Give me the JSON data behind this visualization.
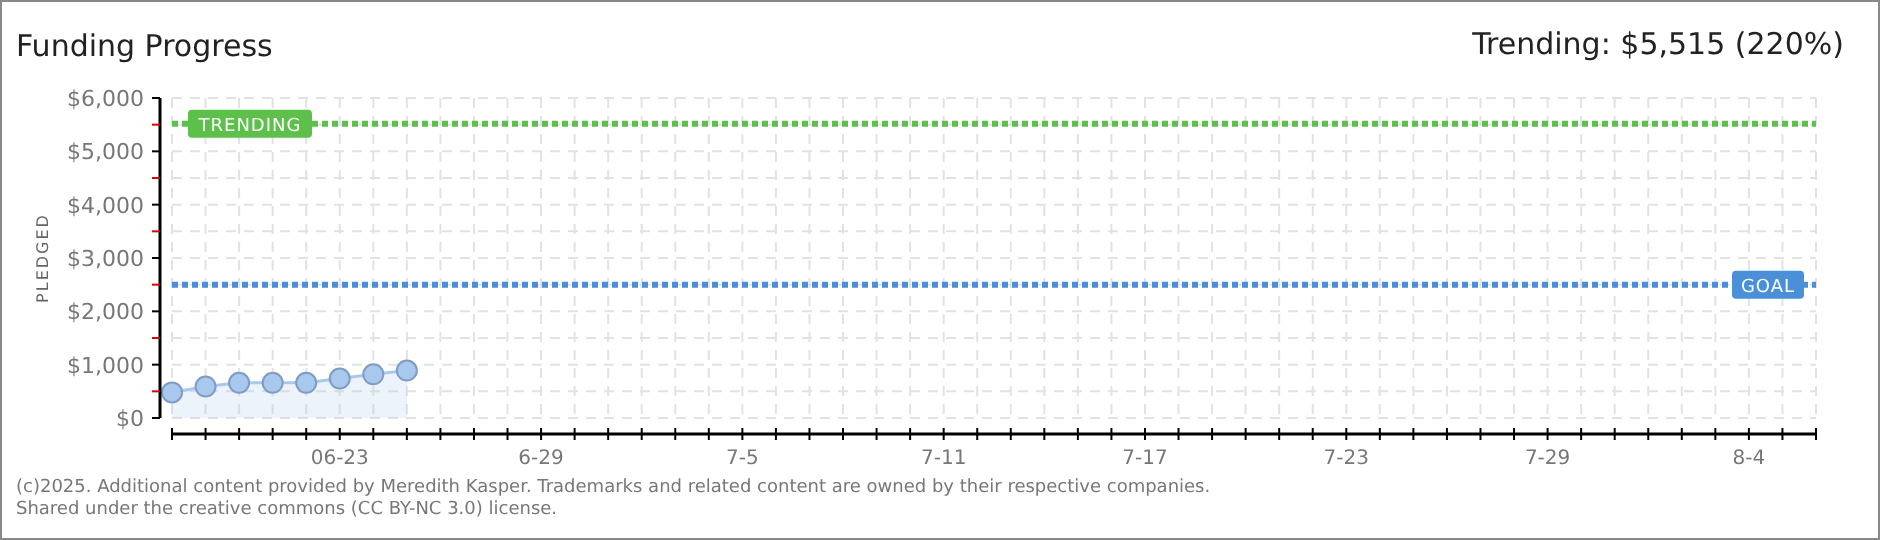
{
  "chart_data": {
    "type": "area",
    "title": "Funding Progress",
    "subtitle": "Trending: $5,515 (220%)",
    "ylabel": "PLEDGED",
    "x": [
      "2025-06-18",
      "2025-06-19",
      "2025-06-20",
      "2025-06-21",
      "2025-06-22",
      "2025-06-23",
      "2025-06-24",
      "2025-06-25"
    ],
    "series": [
      {
        "color": "#a9c8ee",
        "values": [
          480,
          590,
          660,
          660,
          660,
          740,
          820,
          890
        ]
      }
    ],
    "marker": "circle",
    "grid": true,
    "xlim": [
      "2025-06-18",
      "2025-08-06"
    ],
    "xticks": [
      {
        "value": "2025-06-18",
        "label": null
      },
      {
        "value": "2025-06-19",
        "label": null
      },
      {
        "value": "2025-06-20",
        "label": null
      },
      {
        "value": "2025-06-21",
        "label": null
      },
      {
        "value": "2025-06-22",
        "label": null
      },
      {
        "value": "2025-06-23",
        "label": "06-23"
      },
      {
        "value": "2025-06-24",
        "label": null
      },
      {
        "value": "2025-06-25",
        "label": null
      },
      {
        "value": "2025-06-26",
        "label": null
      },
      {
        "value": "2025-06-27",
        "label": null
      },
      {
        "value": "2025-06-28",
        "label": null
      },
      {
        "value": "2025-06-29",
        "label": "6-29"
      },
      {
        "value": "2025-06-30",
        "label": null
      },
      {
        "value": "2025-07-01",
        "label": null
      },
      {
        "value": "2025-07-02",
        "label": null
      },
      {
        "value": "2025-07-03",
        "label": null
      },
      {
        "value": "2025-07-04",
        "label": null
      },
      {
        "value": "2025-07-05",
        "label": "7-5"
      },
      {
        "value": "2025-07-06",
        "label": null
      },
      {
        "value": "2025-07-07",
        "label": null
      },
      {
        "value": "2025-07-08",
        "label": null
      },
      {
        "value": "2025-07-09",
        "label": null
      },
      {
        "value": "2025-07-10",
        "label": null
      },
      {
        "value": "2025-07-11",
        "label": "7-11"
      },
      {
        "value": "2025-07-12",
        "label": null
      },
      {
        "value": "2025-07-13",
        "label": null
      },
      {
        "value": "2025-07-14",
        "label": null
      },
      {
        "value": "2025-07-15",
        "label": null
      },
      {
        "value": "2025-07-16",
        "label": null
      },
      {
        "value": "2025-07-17",
        "label": "7-17"
      },
      {
        "value": "2025-07-18",
        "label": null
      },
      {
        "value": "2025-07-19",
        "label": null
      },
      {
        "value": "2025-07-20",
        "label": null
      },
      {
        "value": "2025-07-21",
        "label": null
      },
      {
        "value": "2025-07-22",
        "label": null
      },
      {
        "value": "2025-07-23",
        "label": "7-23"
      },
      {
        "value": "2025-07-24",
        "label": null
      },
      {
        "value": "2025-07-25",
        "label": null
      },
      {
        "value": "2025-07-26",
        "label": null
      },
      {
        "value": "2025-07-27",
        "label": null
      },
      {
        "value": "2025-07-28",
        "label": null
      },
      {
        "value": "2025-07-29",
        "label": "7-29"
      },
      {
        "value": "2025-07-30",
        "label": null
      },
      {
        "value": "2025-07-31",
        "label": null
      },
      {
        "value": "2025-08-01",
        "label": null
      },
      {
        "value": "2025-08-02",
        "label": null
      },
      {
        "value": "2025-08-03",
        "label": null
      },
      {
        "value": "2025-08-04",
        "label": "8-4"
      },
      {
        "value": "2025-08-05",
        "label": null
      },
      {
        "value": "2025-08-06",
        "label": null
      }
    ],
    "ylim": [
      0,
      6000
    ],
    "yticks": [
      {
        "value": 0,
        "label": "$0"
      },
      {
        "value": 500,
        "label": null
      },
      {
        "value": 1000,
        "label": "$1,000"
      },
      {
        "value": 1500,
        "label": null
      },
      {
        "value": 2000,
        "label": "$2,000"
      },
      {
        "value": 2500,
        "label": null
      },
      {
        "value": 3000,
        "label": "$3,000"
      },
      {
        "value": 3500,
        "label": null
      },
      {
        "value": 4000,
        "label": "$4,000"
      },
      {
        "value": 4500,
        "label": null
      },
      {
        "value": 5000,
        "label": "$5,000"
      },
      {
        "value": 5500,
        "label": null
      },
      {
        "value": 6000,
        "label": "$6,000"
      }
    ],
    "ref_lines": [
      {
        "axis": "y",
        "value": 5515,
        "label": "TRENDING",
        "color": "#5cc04a",
        "line_style": "dotted"
      },
      {
        "axis": "y",
        "value": 2500,
        "label": "GOAL",
        "color": "#4a90d9",
        "line_style": "dotted"
      }
    ],
    "annotations": [
      "(c)2025. Additional content provided by Meredith Kasper. Trademarks and related content are owned by their respective companies.",
      "Shared under the creative commons (CC BY-NC 3.0) license."
    ]
  }
}
